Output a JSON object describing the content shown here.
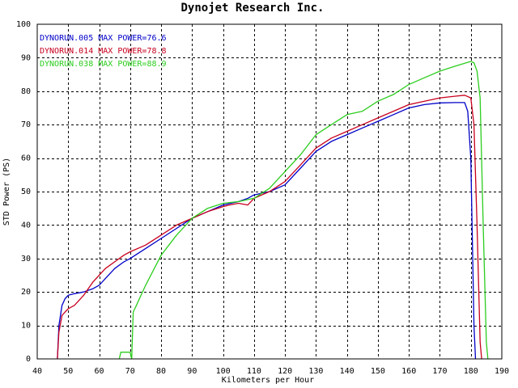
{
  "chart_data": {
    "type": "line",
    "title": "Dynojet  Research  Inc.",
    "xlabel": "Kilometers per Hour",
    "ylabel": "STD Power (PS)",
    "xlim": [
      40,
      190
    ],
    "ylim": [
      0,
      100
    ],
    "xticks": [
      40,
      50,
      60,
      70,
      80,
      90,
      100,
      110,
      120,
      130,
      140,
      150,
      160,
      170,
      180,
      190
    ],
    "yticks": [
      0,
      10,
      20,
      30,
      40,
      50,
      60,
      70,
      80,
      90,
      100
    ],
    "grid": true,
    "legend_position": "top-left",
    "series": [
      {
        "name": "DYNORUN.005",
        "label": "DYNORUN.005    MAX POWER=76.6",
        "color": "#0000c8",
        "x": [
          46.5,
          47,
          48,
          49,
          50,
          52,
          55,
          58,
          60,
          62,
          65,
          68,
          70,
          75,
          80,
          85,
          90,
          95,
          100,
          105,
          108,
          110,
          115,
          120,
          125,
          130,
          135,
          140,
          145,
          150,
          155,
          160,
          165,
          170,
          175,
          178,
          179,
          180,
          181,
          181.5
        ],
        "y": [
          0,
          10,
          16,
          18,
          19,
          19.5,
          20,
          21,
          22,
          24,
          27,
          29,
          30,
          33,
          36,
          39,
          42,
          44,
          46,
          47,
          48,
          49,
          50,
          52,
          57,
          62,
          65,
          67,
          69,
          71,
          73,
          75,
          76,
          76.5,
          76.6,
          76.6,
          74,
          60,
          10,
          0
        ]
      },
      {
        "name": "DYNORUN.014",
        "label": "DYNORUN.014    MAX POWER=78.8",
        "color": "#c8001e",
        "x": [
          46.5,
          47,
          48,
          49,
          50,
          52,
          55,
          58,
          60,
          62,
          65,
          68,
          70,
          75,
          80,
          85,
          90,
          95,
          100,
          102,
          105,
          108,
          110,
          115,
          120,
          125,
          130,
          135,
          140,
          145,
          150,
          155,
          160,
          165,
          170,
          175,
          178,
          180,
          181,
          182,
          183,
          183.5
        ],
        "y": [
          0,
          8,
          13,
          14,
          15,
          16,
          19,
          23,
          25,
          27,
          29,
          31,
          32,
          34,
          37,
          40,
          42,
          44,
          45.5,
          46,
          46.5,
          46,
          48,
          50,
          53,
          58,
          63,
          66,
          68,
          70,
          72,
          74,
          76,
          77,
          78,
          78.5,
          78.8,
          78,
          70,
          40,
          5,
          0
        ]
      },
      {
        "name": "DYNORUN.038",
        "label": "DYNORUN.038    MAX POWER=88.9",
        "color": "#2ccd1e",
        "x": [
          66.5,
          67,
          69,
          70,
          70.5,
          71,
          72,
          75,
          80,
          85,
          90,
          95,
          100,
          105,
          110,
          115,
          120,
          125,
          130,
          135,
          140,
          145,
          150,
          155,
          160,
          165,
          170,
          175,
          180,
          181,
          182,
          183,
          184,
          185,
          185.5
        ],
        "y": [
          0,
          2,
          2,
          2,
          0,
          14,
          16,
          22,
          31,
          37,
          42,
          45,
          46.5,
          47,
          48,
          51,
          56,
          61,
          67,
          70,
          73,
          74,
          77,
          79,
          82,
          84,
          86,
          87.5,
          88.9,
          88.5,
          86,
          78,
          40,
          5,
          0
        ]
      }
    ]
  }
}
